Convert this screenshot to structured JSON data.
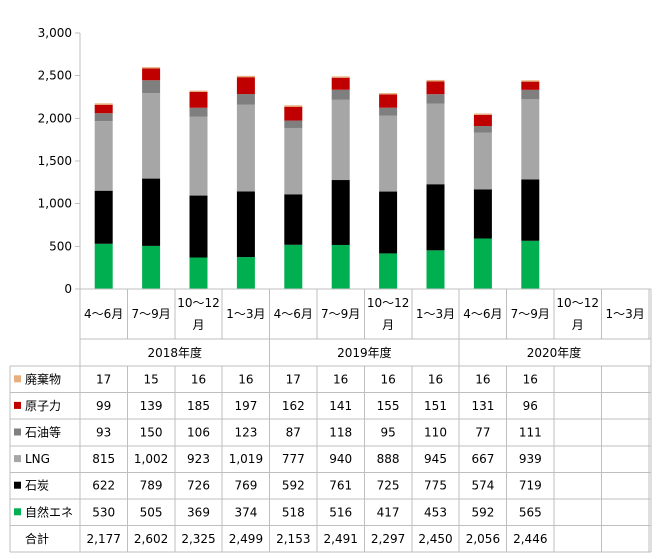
{
  "chart_data": {
    "type": "bar",
    "stacked": true,
    "title": "",
    "xlabel": "",
    "ylabel": "",
    "ylim": [
      0,
      3000
    ],
    "yticks": [
      "0",
      "500",
      "1,000",
      "1,500",
      "2,000",
      "2,500",
      "3,000"
    ],
    "grid": false,
    "legend": "table-left",
    "categories": [
      "4～6月",
      "7～9月",
      "10～12月",
      "1～3月",
      "4～6月",
      "7～9月",
      "10～12月",
      "1～3月",
      "4～6月",
      "7～9月",
      "10～12月",
      "1～3月"
    ],
    "groups": [
      {
        "label": "2018年度",
        "span": 4
      },
      {
        "label": "2019年度",
        "span": 4
      },
      {
        "label": "2020年度",
        "span": 4
      }
    ],
    "series": [
      {
        "name": "自然エネ",
        "color": "#00b050",
        "values": [
          530,
          505,
          369,
          374,
          518,
          516,
          417,
          453,
          592,
          565,
          null,
          null
        ],
        "labels": [
          "530",
          "505",
          "369",
          "374",
          "518",
          "516",
          "417",
          "453",
          "592",
          "565",
          "",
          ""
        ]
      },
      {
        "name": "石炭",
        "color": "#000000",
        "values": [
          622,
          789,
          726,
          769,
          592,
          761,
          725,
          775,
          574,
          719,
          null,
          null
        ],
        "labels": [
          "622",
          "789",
          "726",
          "769",
          "592",
          "761",
          "725",
          "775",
          "574",
          "719",
          "",
          ""
        ]
      },
      {
        "name": "LNG",
        "color": "#a6a6a6",
        "values": [
          815,
          1002,
          923,
          1019,
          777,
          940,
          888,
          945,
          667,
          939,
          null,
          null
        ],
        "labels": [
          "815",
          "1,002",
          "923",
          "1,019",
          "777",
          "940",
          "888",
          "945",
          "667",
          "939",
          "",
          ""
        ]
      },
      {
        "name": "石油等",
        "color": "#7f7f7f",
        "values": [
          93,
          150,
          106,
          123,
          87,
          118,
          95,
          110,
          77,
          111,
          null,
          null
        ],
        "labels": [
          "93",
          "150",
          "106",
          "123",
          "87",
          "118",
          "95",
          "110",
          "77",
          "111",
          "",
          ""
        ]
      },
      {
        "name": "原子力",
        "color": "#c00000",
        "values": [
          99,
          139,
          185,
          197,
          162,
          141,
          155,
          151,
          131,
          96,
          null,
          null
        ],
        "labels": [
          "99",
          "139",
          "185",
          "197",
          "162",
          "141",
          "155",
          "151",
          "131",
          "96",
          "",
          ""
        ]
      },
      {
        "name": "廃棄物",
        "color": "#e6b07e",
        "values": [
          17,
          15,
          16,
          16,
          17,
          16,
          16,
          16,
          16,
          16,
          null,
          null
        ],
        "labels": [
          "17",
          "15",
          "16",
          "16",
          "17",
          "16",
          "16",
          "16",
          "16",
          "16",
          "",
          ""
        ]
      }
    ],
    "table_row_order": [
      "廃棄物",
      "原子力",
      "石油等",
      "LNG",
      "石炭",
      "自然エネ"
    ],
    "total": {
      "name": "合計",
      "labels": [
        "2,177",
        "2,602",
        "2,325",
        "2,499",
        "2,153",
        "2,491",
        "2,297",
        "2,450",
        "2,056",
        "2,446",
        "",
        ""
      ]
    }
  }
}
